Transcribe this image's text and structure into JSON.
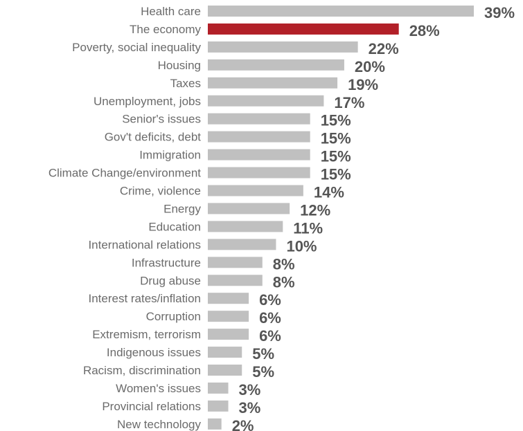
{
  "chart_data": {
    "type": "bar",
    "orientation": "horizontal",
    "categories": [
      "Health care",
      "The economy",
      "Poverty, social inequality",
      "Housing",
      "Taxes",
      "Unemployment, jobs",
      "Senior's issues",
      "Gov't deficits, debt",
      "Immigration",
      "Climate Change/environment",
      "Crime, violence",
      "Energy",
      "Education",
      "International relations",
      "Infrastructure",
      "Drug abuse",
      "Interest rates/inflation",
      "Corruption",
      "Extremism, terrorism",
      "Indigenous issues",
      "Racism, discrimination",
      "Women's issues",
      "Provincial relations",
      "New technology"
    ],
    "values": [
      39,
      28,
      22,
      20,
      19,
      17,
      15,
      15,
      15,
      15,
      14,
      12,
      11,
      10,
      8,
      8,
      6,
      6,
      6,
      5,
      5,
      3,
      3,
      2
    ],
    "value_labels": [
      "39%",
      "28%",
      "22%",
      "20%",
      "19%",
      "17%",
      "15%",
      "15%",
      "15%",
      "15%",
      "14%",
      "12%",
      "11%",
      "10%",
      "8%",
      "8%",
      "6%",
      "6%",
      "6%",
      "5%",
      "5%",
      "3%",
      "3%",
      "2%"
    ],
    "highlight_index": 1,
    "title": "",
    "xlabel": "",
    "ylabel": "",
    "xlim": [
      0,
      39
    ],
    "grid": false,
    "legend": "none",
    "colors": {
      "bar": "#c0c0c0",
      "highlight_bar": "#b22028",
      "value_label": "#555555",
      "highlight_value_label": "#b22028",
      "category_label": "#6b6b6b"
    }
  }
}
